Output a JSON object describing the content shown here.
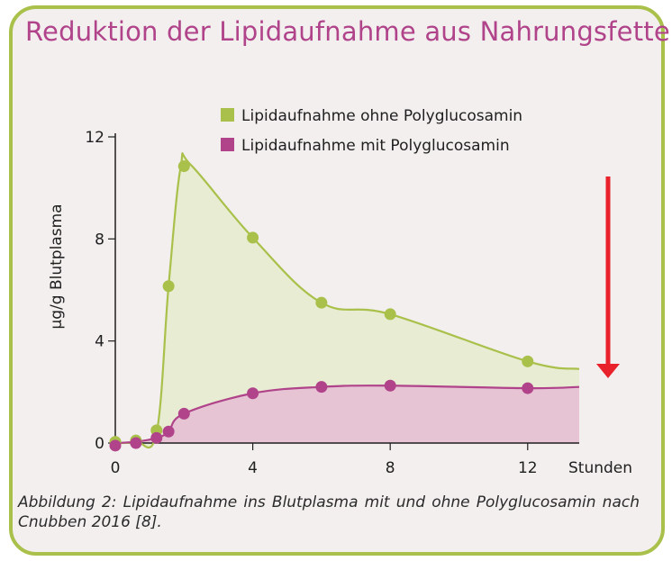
{
  "title": "Reduktion der Lipidaufnahme aus Nahrungsfetten",
  "caption": "Abbildung 2: Lipidaufnahme ins Blutplasma mit und ohne Polyglucosamin nach Cnubben 2016 [8].",
  "colors": {
    "green": "#a9c04a",
    "green_fill": "#e7ecd2",
    "magenta": "#b0438a",
    "magenta_fill": "#e6c4d4",
    "arrow": "#e8212a",
    "border": "#a9c04a"
  },
  "chart_data": {
    "type": "area",
    "title": "Reduktion der Lipidaufnahme aus Nahrungsfetten",
    "xlabel": "Stunden",
    "ylabel": "µg/g Blutplasma",
    "xlim": [
      0,
      13.5
    ],
    "ylim": [
      0,
      12
    ],
    "xticks": [
      0,
      4,
      8,
      12
    ],
    "yticks": [
      0,
      4,
      8,
      12
    ],
    "grid": false,
    "legend_position": "top-center",
    "series": [
      {
        "name": "Lipidaufnahme ohne Polyglucosamin",
        "color": "#a9c04a",
        "points": [
          [
            0,
            0.05
          ],
          [
            0.6,
            0.1
          ],
          [
            1.2,
            0.5
          ],
          [
            1.55,
            6.15
          ],
          [
            2.0,
            10.85
          ],
          [
            4.0,
            8.05
          ],
          [
            6.0,
            5.5
          ],
          [
            8.0,
            5.05
          ],
          [
            12.0,
            3.2
          ]
        ],
        "curve": [
          [
            0,
            0
          ],
          [
            0.6,
            0.05
          ],
          [
            1.2,
            0.4
          ],
          [
            1.55,
            6.15
          ],
          [
            1.9,
            10.8
          ],
          [
            2.2,
            10.9
          ],
          [
            4.0,
            8.05
          ],
          [
            6.0,
            5.5
          ],
          [
            8.0,
            5.05
          ],
          [
            12.0,
            3.2
          ],
          [
            13.5,
            2.9
          ]
        ]
      },
      {
        "name": "Lipidaufnahme mit Polyglucosamin",
        "color": "#b0438a",
        "points": [
          [
            0,
            -0.1
          ],
          [
            0.6,
            0.0
          ],
          [
            1.2,
            0.2
          ],
          [
            1.55,
            0.45
          ],
          [
            2.0,
            1.15
          ],
          [
            4.0,
            1.95
          ],
          [
            6.0,
            2.2
          ],
          [
            8.0,
            2.25
          ],
          [
            12.0,
            2.15
          ]
        ],
        "curve": [
          [
            0,
            0
          ],
          [
            0.6,
            0.05
          ],
          [
            1.2,
            0.2
          ],
          [
            1.55,
            0.45
          ],
          [
            2.0,
            1.15
          ],
          [
            4.0,
            1.95
          ],
          [
            6.0,
            2.2
          ],
          [
            8.0,
            2.25
          ],
          [
            12.0,
            2.15
          ],
          [
            13.5,
            2.2
          ]
        ]
      }
    ]
  }
}
